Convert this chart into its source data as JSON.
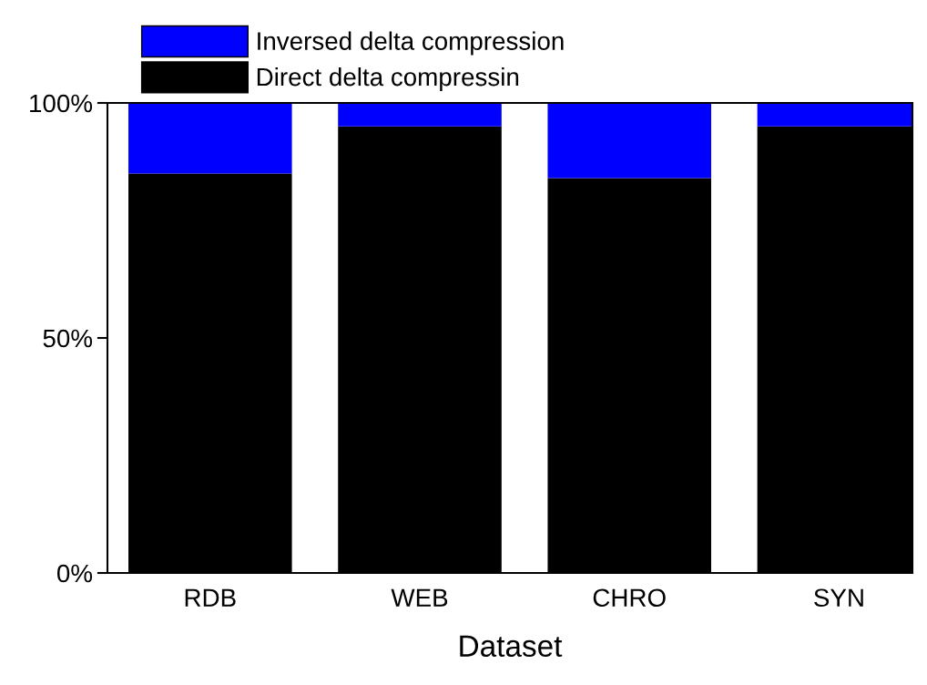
{
  "chart_data": {
    "type": "bar",
    "stacked": true,
    "xlabel": "Dataset",
    "categories": [
      "RDB",
      "WEB",
      "CHRO",
      "SYN"
    ],
    "series": [
      {
        "name": "Direct delta compressin",
        "color": "#000000",
        "values": [
          85,
          95,
          84,
          95
        ]
      },
      {
        "name": "Inversed delta compression",
        "color": "#0000ff",
        "values": [
          15,
          5,
          16,
          5
        ]
      }
    ],
    "ylim": [
      0,
      100
    ],
    "yticks": [
      {
        "value": 0,
        "label": "0%"
      },
      {
        "value": 50,
        "label": "50%"
      },
      {
        "value": 100,
        "label": "100%"
      }
    ],
    "grid": false,
    "legend": "top left"
  }
}
